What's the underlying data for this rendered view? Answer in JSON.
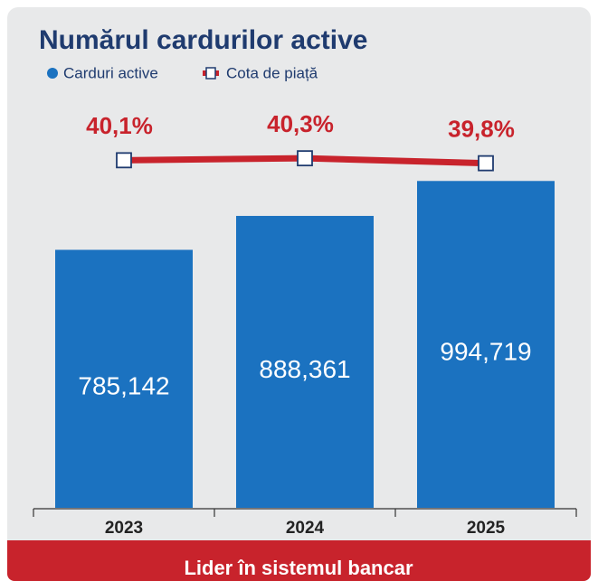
{
  "chart_data": {
    "type": "bar_line",
    "title": "Numărul cardurilor active",
    "categories": [
      "2023",
      "2024",
      "2025"
    ],
    "series": [
      {
        "name": "Carduri active",
        "type": "bar",
        "color": "#1b72c0",
        "values": [
          785142,
          888361,
          994719
        ],
        "value_labels": [
          "785,142",
          "888,361",
          "994,719"
        ]
      },
      {
        "name": "Cota de piață",
        "type": "line",
        "axis": "y2",
        "color": "#c8232c",
        "values": [
          40.1,
          40.3,
          39.8
        ],
        "value_labels": [
          "40,1%",
          "40,3%",
          "39,8%"
        ]
      }
    ],
    "ylim": [
      0,
      1100000
    ],
    "y2lim": [
      5,
      41.5
    ],
    "footer": "Lider în sistemul bancar"
  }
}
